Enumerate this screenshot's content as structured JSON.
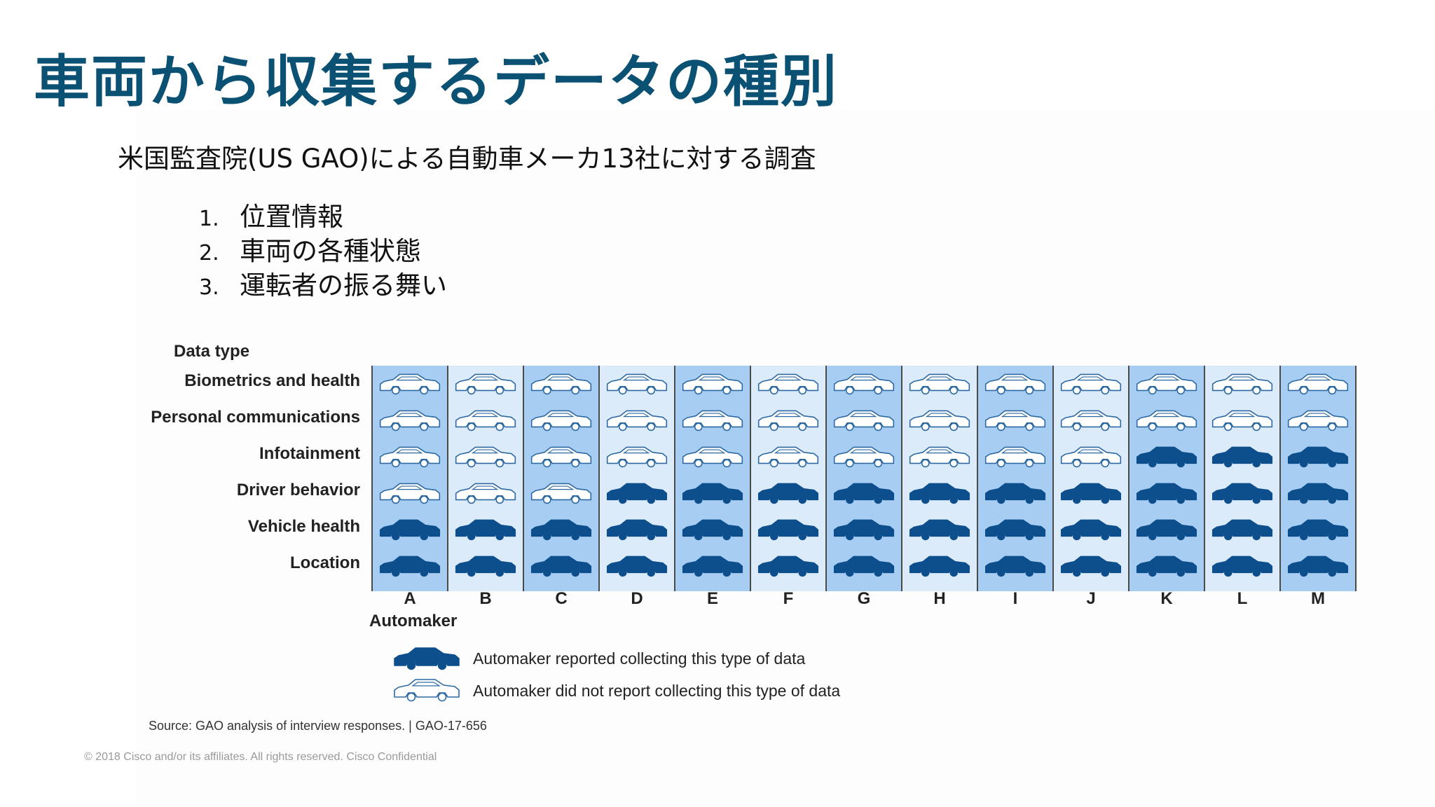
{
  "slide": {
    "title": "車両から収集するデータの種別",
    "subtitle": "米国監査院(US GAO)による自動車メーカ13社に対する調査",
    "points": [
      {
        "num": "1.",
        "text": "位置情報"
      },
      {
        "num": "2.",
        "text": "車両の各種状態"
      },
      {
        "num": "3.",
        "text": "運転者の振る舞い"
      }
    ],
    "copyright": "© 2018 Cisco and/or its affiliates. All rights reserved. Cisco Confidential"
  },
  "colors": {
    "title": "#0b5173",
    "car_filled": "#0d4f8c",
    "col_dark": "#a7cdf3",
    "col_light": "#dcebfa",
    "col_border": "#4a4a4a"
  },
  "chart_data": {
    "type": "table",
    "y_title": "Data type",
    "x_title": "Automaker",
    "rows": [
      "Biometrics and health",
      "Personal communications",
      "Infotainment",
      "Driver behavior",
      "Vehicle health",
      "Location"
    ],
    "columns": [
      "A",
      "B",
      "C",
      "D",
      "E",
      "F",
      "G",
      "H",
      "I",
      "J",
      "K",
      "L",
      "M"
    ],
    "values": [
      [
        0,
        0,
        0,
        0,
        0,
        0,
        0,
        0,
        0,
        0,
        0,
        0,
        0
      ],
      [
        0,
        0,
        0,
        0,
        0,
        0,
        0,
        0,
        0,
        0,
        0,
        0,
        0
      ],
      [
        0,
        0,
        0,
        0,
        0,
        0,
        0,
        0,
        0,
        0,
        1,
        1,
        1
      ],
      [
        0,
        0,
        0,
        1,
        1,
        1,
        1,
        1,
        1,
        1,
        1,
        1,
        1
      ],
      [
        1,
        1,
        1,
        1,
        1,
        1,
        1,
        1,
        1,
        1,
        1,
        1,
        1
      ],
      [
        1,
        1,
        1,
        1,
        1,
        1,
        1,
        1,
        1,
        1,
        1,
        1,
        1
      ]
    ],
    "legend": [
      {
        "marker": "filled-car",
        "label": "Automaker reported collecting this type of data"
      },
      {
        "marker": "outline-car",
        "label": "Automaker did not report collecting this type of data"
      }
    ],
    "source": "Source: GAO analysis of interview responses.  |  GAO-17-656"
  }
}
